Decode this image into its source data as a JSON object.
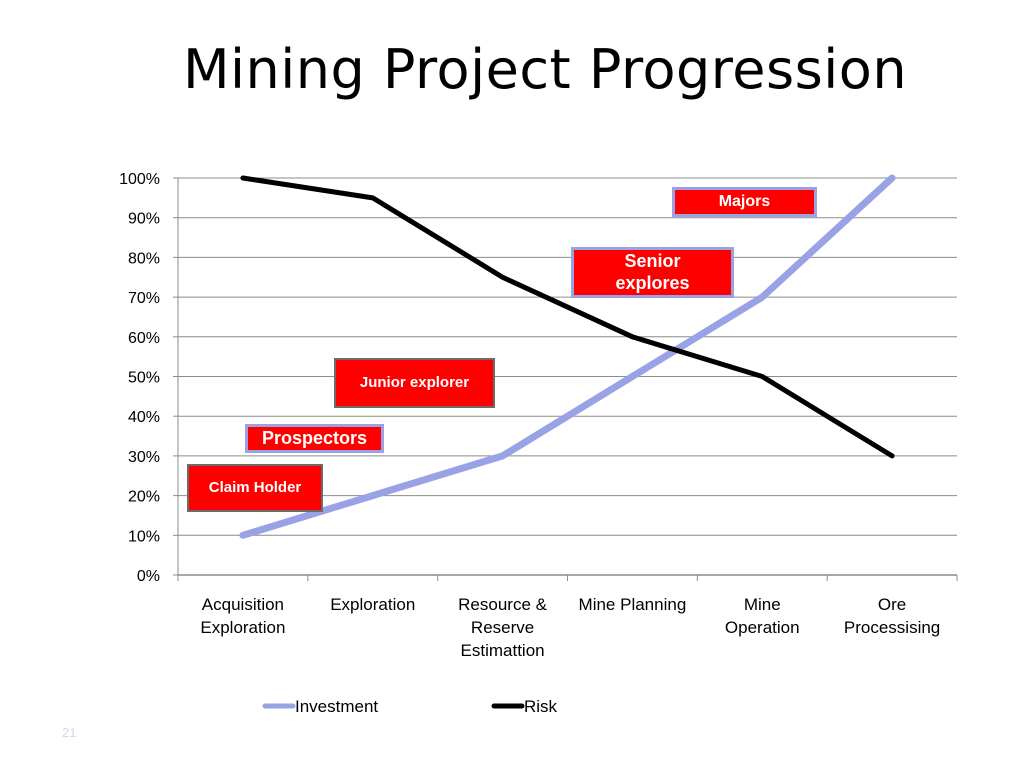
{
  "slide": {
    "title": "Mining Project Progression",
    "number": "21"
  },
  "colors": {
    "investment": "#9aa2e6",
    "risk": "#000000",
    "callout_fill": "#ff0000",
    "gridline": "#8c8c8c"
  },
  "chart_data": {
    "type": "line",
    "categories": [
      [
        "Acquisition",
        "Exploration"
      ],
      [
        "Exploration"
      ],
      [
        "Resource &",
        "Reserve",
        "Estimattion"
      ],
      [
        "Mine Planning"
      ],
      [
        "Mine",
        "Operation"
      ],
      [
        "Ore",
        "Processising"
      ]
    ],
    "series": [
      {
        "name": "Investment",
        "values": [
          10,
          20,
          30,
          50,
          70,
          100
        ]
      },
      {
        "name": "Risk",
        "values": [
          100,
          95,
          75,
          60,
          50,
          30
        ]
      }
    ],
    "ylim": [
      0,
      100
    ],
    "yticks": [
      "0%",
      "10%",
      "20%",
      "30%",
      "40%",
      "50%",
      "60%",
      "70%",
      "80%",
      "90%",
      "100%"
    ],
    "grid": true,
    "legend": "bottom",
    "annotations": [
      {
        "text": [
          "Claim Holder"
        ],
        "style": "gray",
        "size": 15
      },
      {
        "text": [
          "Prospectors"
        ],
        "style": "blue",
        "size": 18
      },
      {
        "text": [
          "Junior explorer"
        ],
        "style": "gray",
        "size": 15
      },
      {
        "text": [
          "Senior",
          "explores"
        ],
        "style": "blue",
        "size": 18
      },
      {
        "text": [
          "Majors"
        ],
        "style": "blue",
        "size": 16
      }
    ]
  }
}
